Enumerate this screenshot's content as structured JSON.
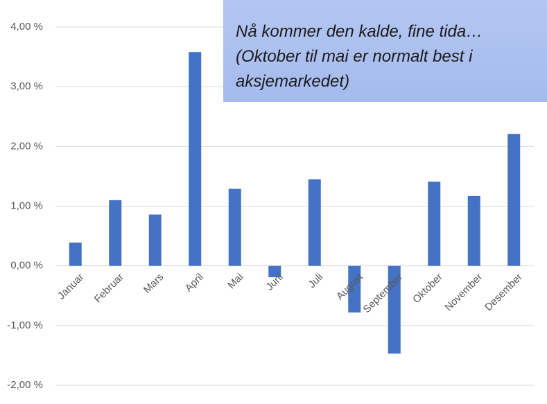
{
  "chart_data": {
    "type": "bar",
    "categories": [
      "Januar",
      "Februar",
      "Mars",
      "April",
      "Mai",
      "Juni",
      "Juli",
      "August",
      "September",
      "Oktober",
      "November",
      "Desember"
    ],
    "values": [
      0.39,
      1.1,
      0.86,
      3.58,
      1.29,
      -0.19,
      1.45,
      -0.78,
      -1.47,
      1.41,
      1.17,
      2.21
    ],
    "color": "#4472c4",
    "ylim": [
      -2,
      4
    ],
    "yticks": [
      {
        "value": -2,
        "label": "-2,00 %"
      },
      {
        "value": -1,
        "label": "-1,00 %"
      },
      {
        "value": 0,
        "label": "0,00 %"
      },
      {
        "value": 1,
        "label": "1,00 %"
      },
      {
        "value": 2,
        "label": "2,00 %"
      },
      {
        "value": 3,
        "label": "3,00 %"
      },
      {
        "value": 4,
        "label": "4,00 %"
      }
    ],
    "grid": true,
    "annotation": [
      "Nå kommer den kalde, fine tida…",
      "(Oktober til mai er normalt best i",
      "aksjemarkedet)"
    ]
  }
}
